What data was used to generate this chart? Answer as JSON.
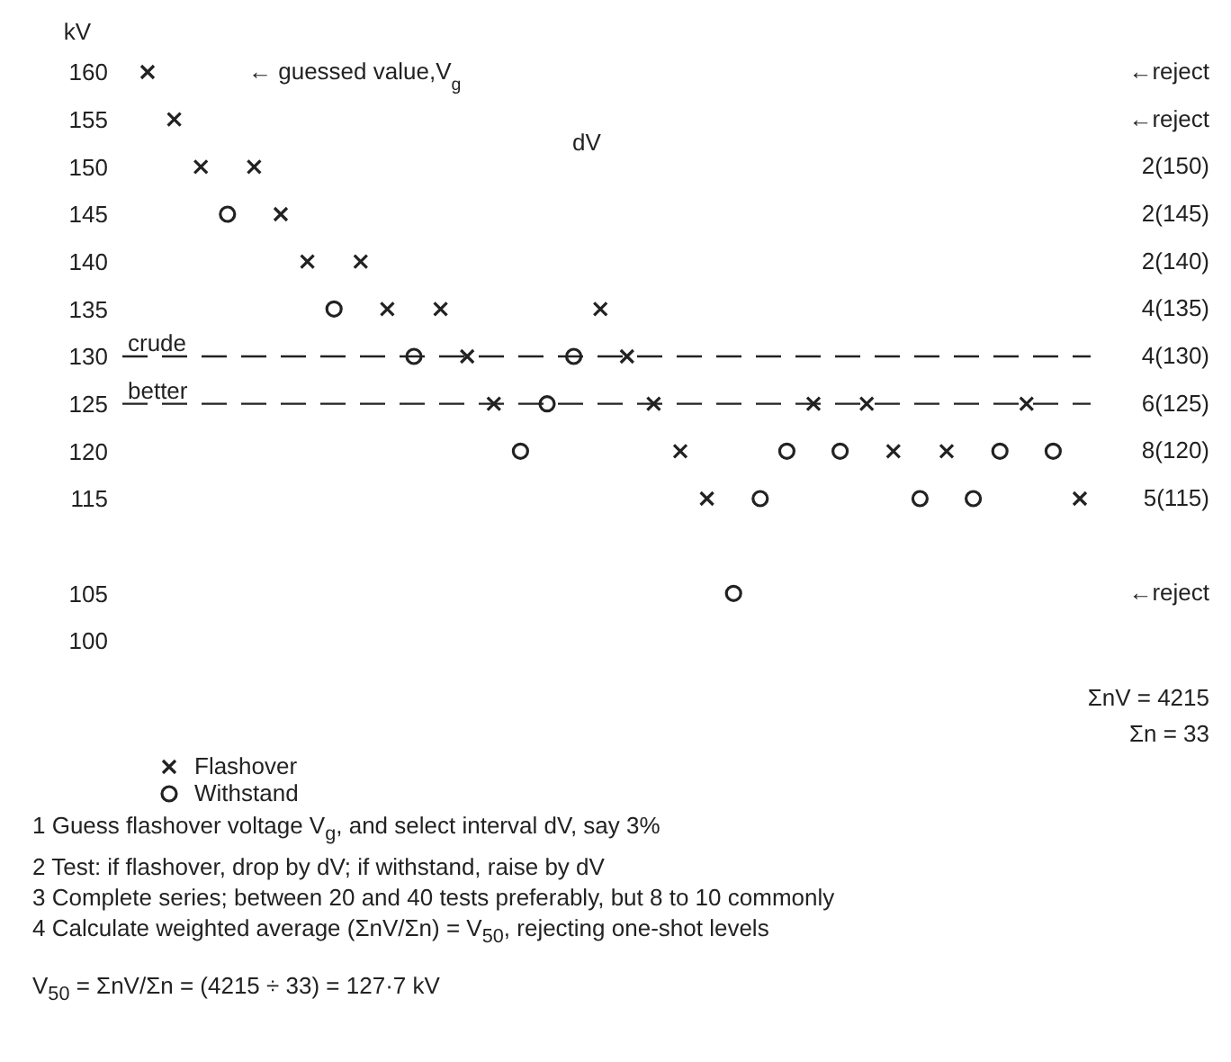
{
  "chart_data": {
    "type": "scatter",
    "ylabel": "kV",
    "categories": [
      null,
      null,
      null,
      null,
      null,
      null,
      null,
      null,
      null,
      null,
      null,
      null,
      null,
      null,
      null,
      null,
      null,
      null,
      null,
      null,
      null,
      null,
      null,
      null,
      null,
      null,
      null,
      null,
      null,
      null,
      null,
      null,
      null,
      null,
      null,
      null
    ],
    "series": [
      {
        "name": "Flashover",
        "color": "#222222",
        "marker": "cross",
        "values": [
          160,
          155,
          150,
          null,
          150,
          145,
          140,
          null,
          140,
          135,
          null,
          135,
          130,
          125,
          null,
          null,
          null,
          135,
          130,
          125,
          120,
          115,
          null,
          null,
          null,
          125,
          null,
          125,
          120,
          null,
          120,
          null,
          null,
          125,
          null,
          115
        ]
      },
      {
        "name": "Withstand",
        "color": "#222222",
        "marker": "circle",
        "values": [
          null,
          null,
          null,
          145,
          null,
          null,
          null,
          135,
          null,
          null,
          130,
          null,
          null,
          null,
          120,
          125,
          130,
          null,
          null,
          null,
          null,
          null,
          105,
          115,
          120,
          null,
          120,
          null,
          null,
          115,
          null,
          115,
          120,
          null,
          120,
          null
        ]
      }
    ],
    "ylim": [
      100,
      160
    ],
    "yticks": [
      100,
      105,
      115,
      120,
      125,
      130,
      135,
      140,
      145,
      150,
      155,
      160
    ],
    "ref_lines": [
      {
        "axis": "y",
        "value": 130,
        "label": "crude",
        "line_style": "dashed"
      },
      {
        "axis": "y",
        "value": 125,
        "label": "better",
        "line_style": "dashed"
      }
    ],
    "legend": "bottom left",
    "grid": false,
    "annotations": [
      "← guessed value,V$_{g}$",
      "dV",
      "←reject",
      "←reject",
      "2(150)",
      "2(145)",
      "2(140)",
      "4(135)",
      "4(130)",
      "6(125)",
      "8(120)",
      "5(115)",
      "←reject",
      "ΣnV = 4215",
      "Σn = 33",
      "1  Guess flashover voltage V$_{g}$, and select interval dV, say 3%",
      "2  Test: if flashover, drop by dV; if withstand, raise by dV",
      "3  Complete series; between 20 and 40 tests preferably, but 8 to 10 commonly",
      "4  Calculate weighted average (ΣnV/Σn) = V$_{50}$, rejecting one-shot levels",
      "V$_{50}$ = ΣnV/Σn = (4215 ÷ 33) = 127·7 kV"
    ]
  }
}
